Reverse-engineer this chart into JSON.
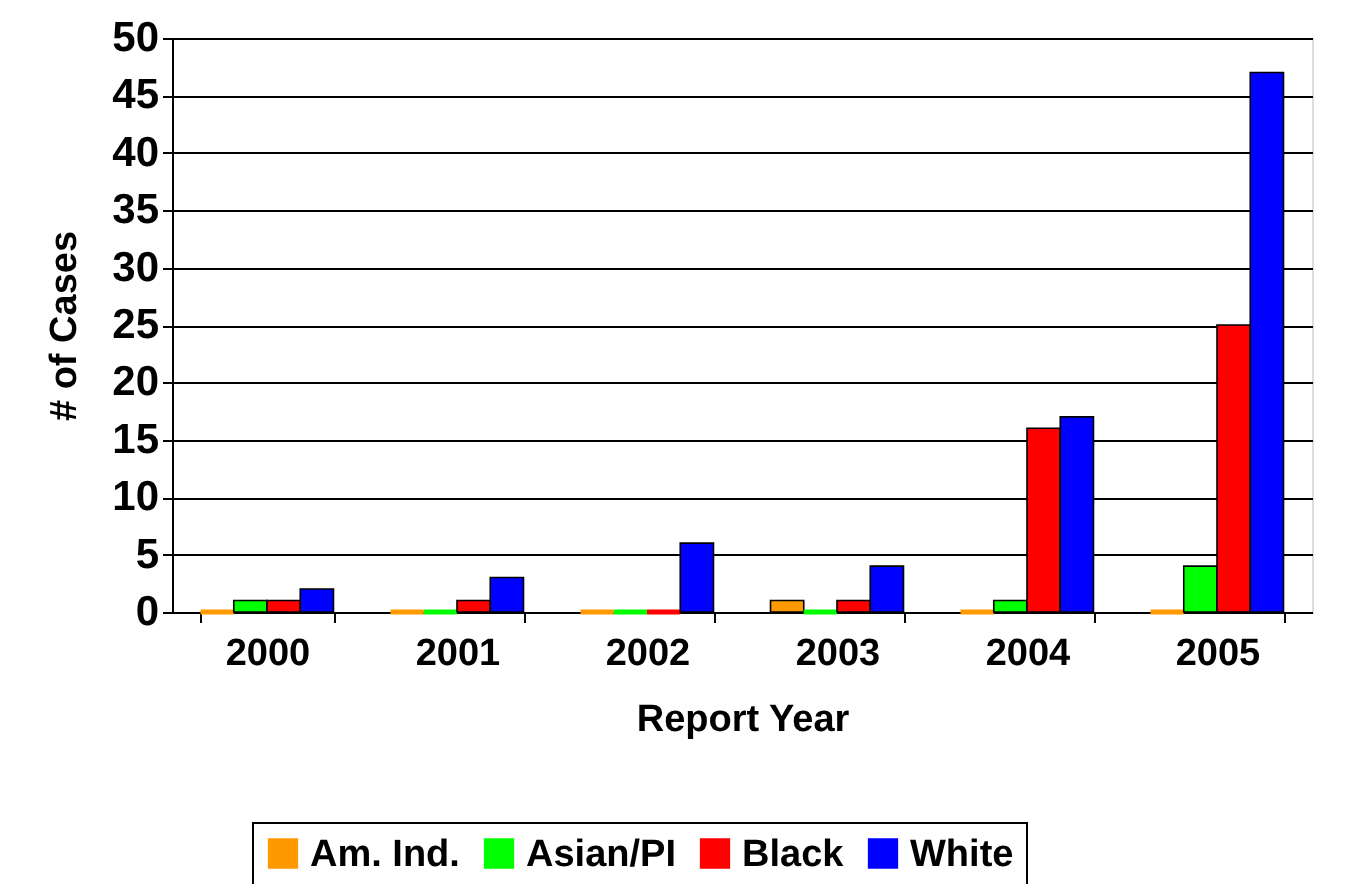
{
  "chart_data": {
    "type": "bar",
    "xlabel": "Report Year",
    "ylabel": "# of Cases",
    "categories": [
      "2000",
      "2001",
      "2002",
      "2003",
      "2004",
      "2005"
    ],
    "series": [
      {
        "name": "Am. Ind.",
        "color": "#ff9900",
        "values": [
          0,
          0,
          0,
          1,
          0,
          0
        ]
      },
      {
        "name": "Asian/PI",
        "color": "#00ff00",
        "values": [
          1,
          0,
          0,
          0,
          1,
          4
        ]
      },
      {
        "name": "Black",
        "color": "#ff0000",
        "values": [
          1,
          1,
          0,
          1,
          16,
          25
        ]
      },
      {
        "name": "White",
        "color": "#0000ff",
        "values": [
          2,
          3,
          6,
          4,
          17,
          47
        ]
      }
    ],
    "ylim": [
      0,
      50
    ],
    "yticks": [
      0,
      5,
      10,
      15,
      20,
      25,
      30,
      35,
      40,
      45,
      50
    ],
    "grid": "y",
    "legend": "bottom"
  }
}
